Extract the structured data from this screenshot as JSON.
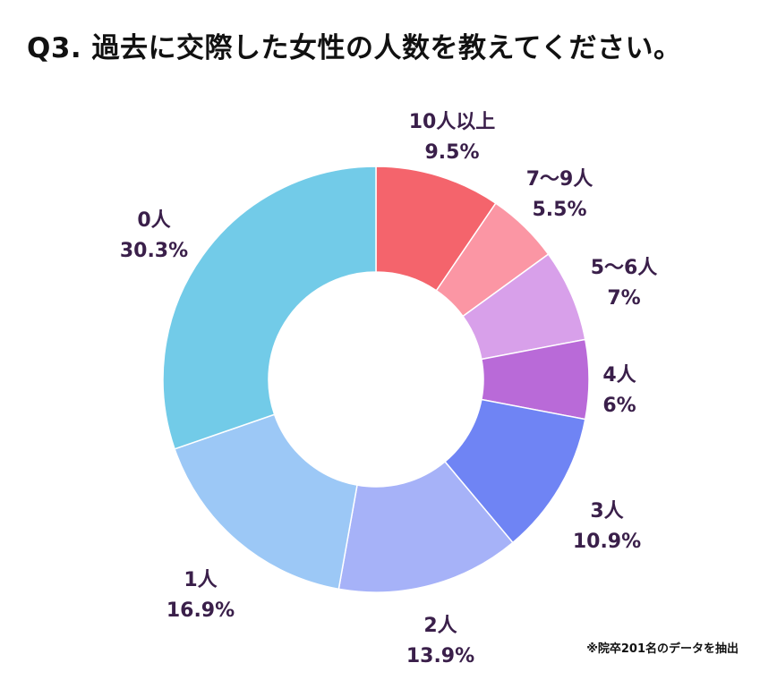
{
  "chart_data": {
    "type": "pie",
    "title": "Q3. 過去に交際した女性の人数を教えてください。",
    "note": "※院卒201名のデータを抽出",
    "donut": true,
    "label_color": "#3a1f4a",
    "slices": [
      {
        "label": "10人以上",
        "value": 9.5,
        "display": "9.5%",
        "color": "#f4646c"
      },
      {
        "label": "7〜9人",
        "value": 5.5,
        "display": "5.5%",
        "color": "#fb96a4"
      },
      {
        "label": "5〜6人",
        "value": 7,
        "display": "7%",
        "color": "#d8a0ea"
      },
      {
        "label": "4人",
        "value": 6,
        "display": "6%",
        "color": "#b96ad8"
      },
      {
        "label": "3人",
        "value": 10.9,
        "display": "10.9%",
        "color": "#6f84f4"
      },
      {
        "label": "2人",
        "value": 13.9,
        "display": "13.9%",
        "color": "#a6b2f8"
      },
      {
        "label": "1人",
        "value": 16.9,
        "display": "16.9%",
        "color": "#9cc8f6"
      },
      {
        "label": "0人",
        "value": 30.3,
        "display": "30.3%",
        "color": "#72cbe8"
      }
    ]
  }
}
